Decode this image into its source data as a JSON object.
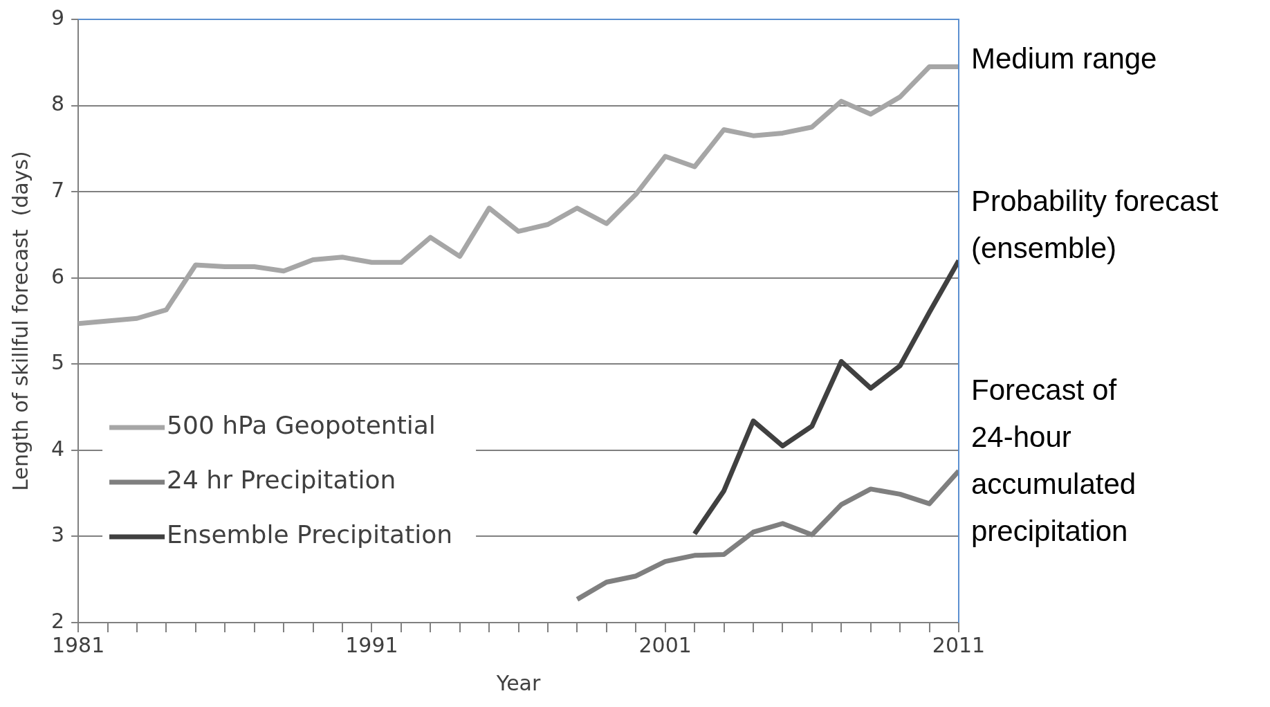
{
  "chart_data": {
    "type": "line",
    "xlabel": "Year",
    "ylabel": "Length of skillful forecast  (days)",
    "x": [
      1981,
      1982,
      1983,
      1984,
      1985,
      1986,
      1987,
      1988,
      1989,
      1990,
      1991,
      1992,
      1993,
      1994,
      1995,
      1996,
      1997,
      1998,
      1999,
      2000,
      2001,
      2002,
      2003,
      2004,
      2005,
      2006,
      2007,
      2008,
      2009,
      2010,
      2011
    ],
    "series": [
      {
        "name": "500 hPa Geopotential",
        "color": "#a6a6a6",
        "values": [
          5.47,
          5.5,
          5.53,
          5.63,
          6.15,
          6.13,
          6.13,
          6.08,
          6.21,
          6.24,
          6.18,
          6.18,
          6.47,
          6.25,
          6.81,
          6.54,
          6.62,
          6.81,
          6.63,
          6.97,
          7.41,
          7.29,
          7.72,
          7.65,
          7.68,
          7.75,
          8.05,
          7.9,
          8.1,
          8.45,
          8.45
        ]
      },
      {
        "name": "24 hr Precipitation",
        "color": "#7f7f7f",
        "values": [
          null,
          null,
          null,
          null,
          null,
          null,
          null,
          null,
          null,
          null,
          null,
          null,
          null,
          null,
          null,
          null,
          null,
          2.27,
          2.47,
          2.54,
          2.71,
          2.78,
          2.79,
          3.05,
          3.15,
          3.02,
          3.37,
          3.55,
          3.49,
          3.38,
          3.76
        ]
      },
      {
        "name": "Ensemble Precipitation",
        "color": "#404040",
        "values": [
          null,
          null,
          null,
          null,
          null,
          null,
          null,
          null,
          null,
          null,
          null,
          null,
          null,
          null,
          null,
          null,
          null,
          null,
          null,
          null,
          null,
          3.03,
          3.53,
          4.34,
          4.05,
          4.28,
          5.03,
          4.72,
          4.98,
          5.6,
          6.2
        ]
      }
    ],
    "xlim": [
      1981,
      2011
    ],
    "xticks": [
      1981,
      {
        "value": 1982,
        "label": null
      },
      {
        "value": 1983,
        "label": null
      },
      {
        "value": 1984,
        "label": null
      },
      {
        "value": 1985,
        "label": null
      },
      {
        "value": 1986,
        "label": null
      },
      {
        "value": 1987,
        "label": null
      },
      {
        "value": 1988,
        "label": null
      },
      {
        "value": 1989,
        "label": null
      },
      {
        "value": 1990,
        "label": null
      },
      1991,
      {
        "value": 1992,
        "label": null
      },
      {
        "value": 1993,
        "label": null
      },
      {
        "value": 1994,
        "label": null
      },
      {
        "value": 1995,
        "label": null
      },
      {
        "value": 1996,
        "label": null
      },
      {
        "value": 1997,
        "label": null
      },
      {
        "value": 1998,
        "label": null
      },
      {
        "value": 1999,
        "label": null
      },
      {
        "value": 2000,
        "label": null
      },
      2001,
      {
        "value": 2002,
        "label": null
      },
      {
        "value": 2003,
        "label": null
      },
      {
        "value": 2004,
        "label": null
      },
      {
        "value": 2005,
        "label": null
      },
      {
        "value": 2006,
        "label": null
      },
      {
        "value": 2007,
        "label": null
      },
      {
        "value": 2008,
        "label": null
      },
      {
        "value": 2009,
        "label": null
      },
      {
        "value": 2010,
        "label": null
      },
      2011
    ],
    "ylim": [
      2,
      9
    ],
    "yticks": [
      2,
      3,
      4,
      5,
      6,
      7,
      8,
      9
    ],
    "grid": "y",
    "legend": "bottom left",
    "marker": "none",
    "line_style": "solid",
    "annotations": [
      "Medium range",
      "Probability forecast (ensemble)",
      "Forecast of 24-hour accumulated precipitation"
    ]
  }
}
